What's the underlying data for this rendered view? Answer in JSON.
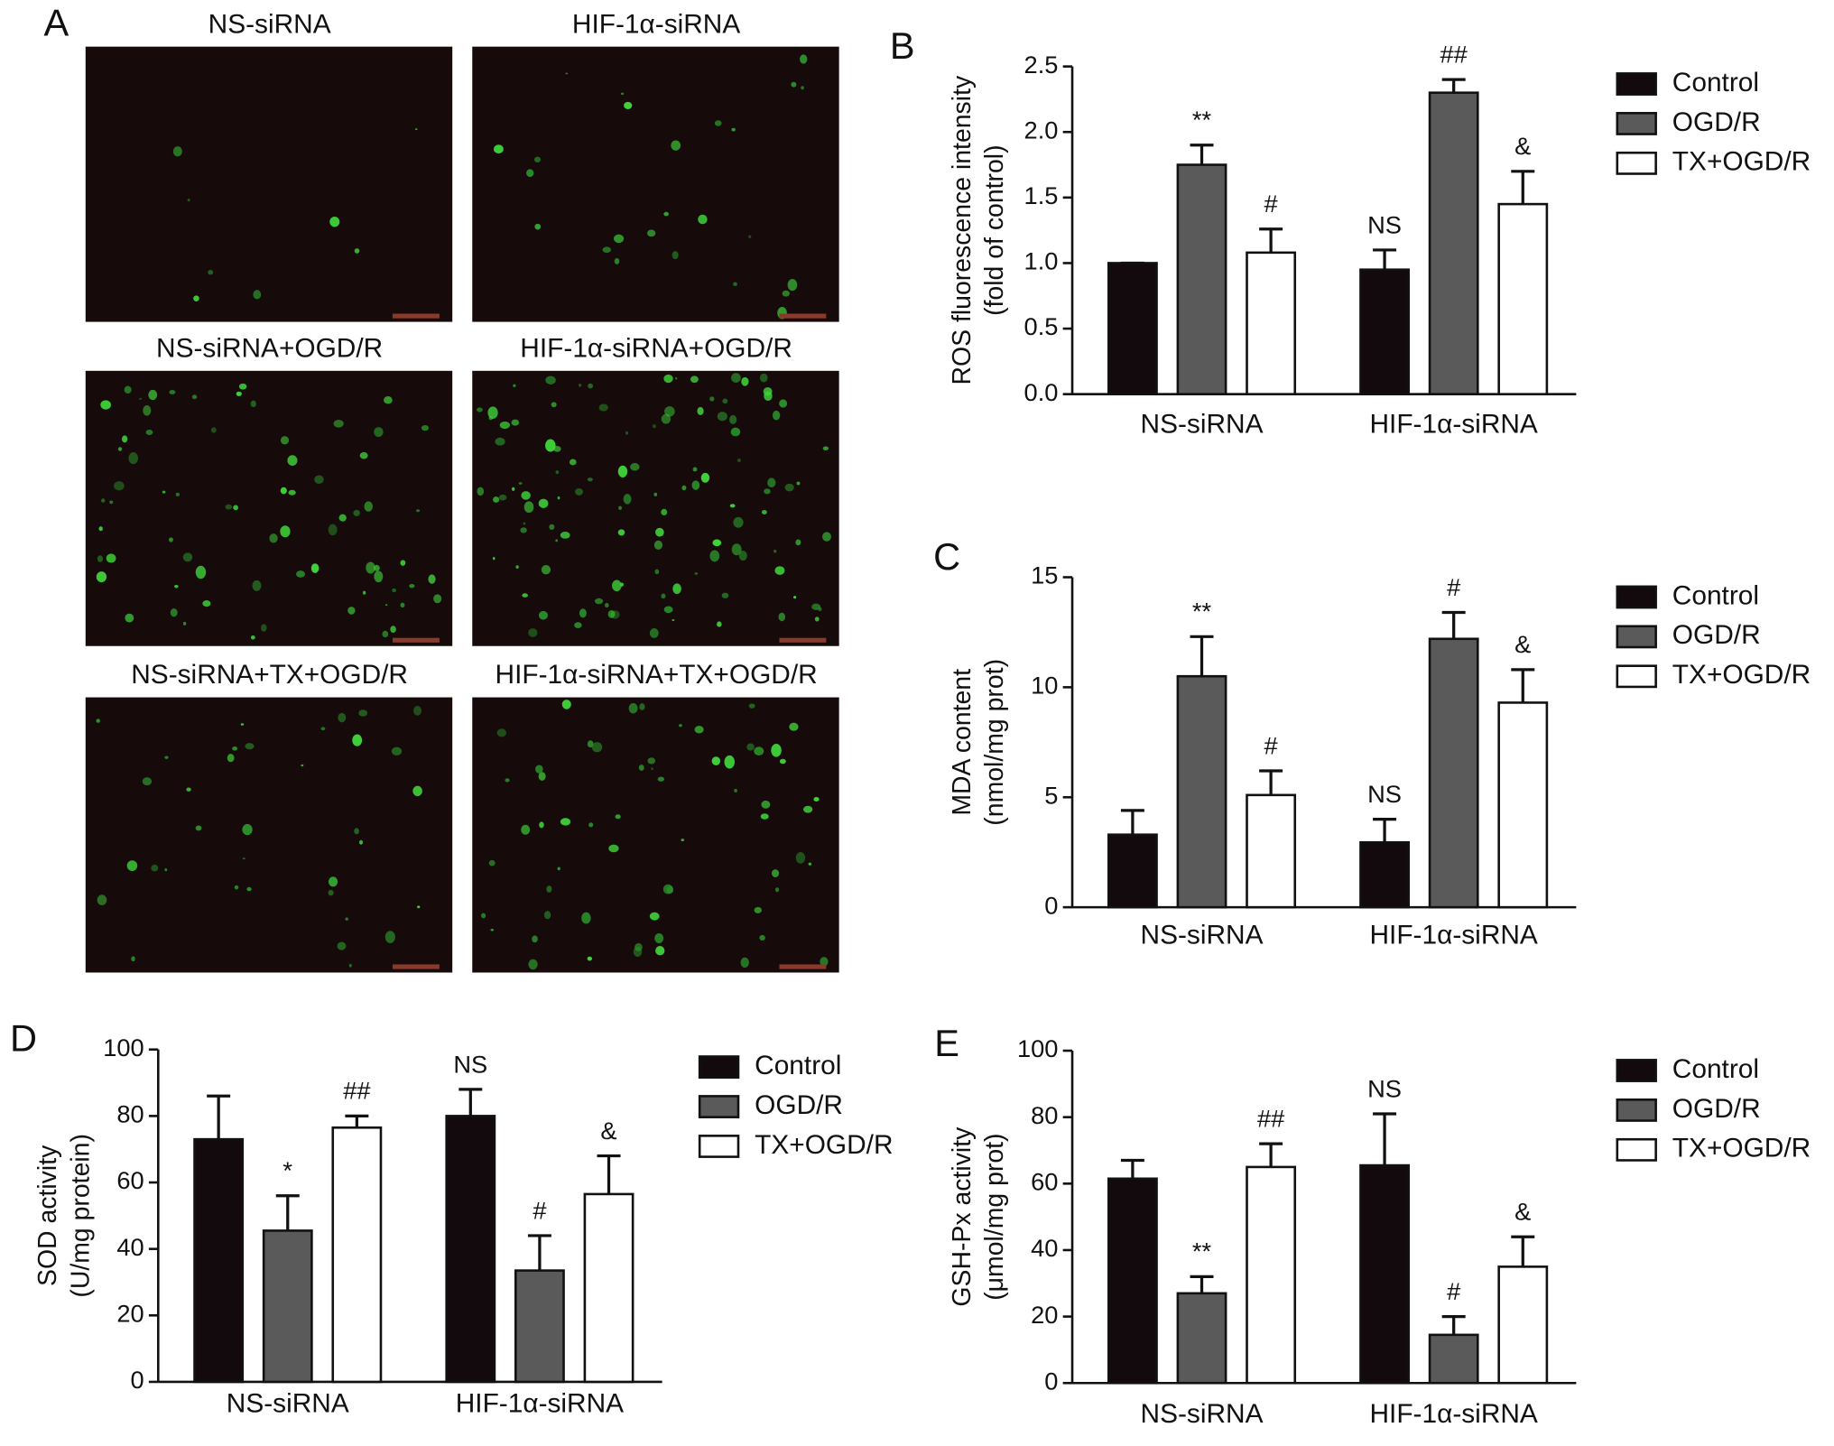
{
  "images": {
    "label": "A",
    "titles": [
      "NS-siRNA",
      "HIF-1α-siRNA",
      "NS-siRNA+OGD/R",
      "HIF-1α-siRNA+OGD/R",
      "NS-siRNA+TX+OGD/R",
      "HIF-1α-siRNA+TX+OGD/R"
    ]
  },
  "chart_data": [
    {
      "type": "bar",
      "panel": "B",
      "ylabel": [
        "ROS fluorescence intensity",
        "(fold of control)"
      ],
      "categories": [
        "NS-siRNA",
        "HIF-1α-siRNA"
      ],
      "ylim": [
        0,
        2.5
      ],
      "yticks": [
        {
          "value": 0,
          "label": "0.0"
        },
        0.5,
        {
          "value": 1,
          "label": "1.0"
        },
        1.5,
        {
          "value": 2,
          "label": "2.0"
        },
        2.5
      ],
      "series": [
        {
          "name": "Control",
          "color": "#120a0c",
          "values": [
            1.0,
            0.95
          ],
          "errors": [
            0,
            0.15
          ],
          "annotations": [
            null,
            "NS"
          ]
        },
        {
          "name": "OGD/R",
          "color": "#5a5a5a",
          "values": [
            1.75,
            2.3
          ],
          "errors": [
            0.15,
            0.1
          ],
          "annotations": [
            "**",
            "##"
          ]
        },
        {
          "name": "TX+OGD/R",
          "color": "#ffffff",
          "values": [
            1.08,
            1.45
          ],
          "errors": [
            0.18,
            0.25
          ],
          "annotations": [
            "#",
            "&"
          ]
        }
      ]
    },
    {
      "type": "bar",
      "panel": "C",
      "ylabel": [
        "MDA content",
        "(nmol/mg prot)"
      ],
      "categories": [
        "NS-siRNA",
        "HIF-1α-siRNA"
      ],
      "ylim": [
        0,
        15
      ],
      "yticks": [
        0,
        5,
        10,
        15
      ],
      "series": [
        {
          "name": "Control",
          "color": "#120a0c",
          "values": [
            3.3,
            2.95
          ],
          "errors": [
            1.1,
            1.05
          ],
          "annotations": [
            null,
            "NS"
          ]
        },
        {
          "name": "OGD/R",
          "color": "#5a5a5a",
          "values": [
            10.5,
            12.2
          ],
          "errors": [
            1.8,
            1.2
          ],
          "annotations": [
            "**",
            "#"
          ]
        },
        {
          "name": "TX+OGD/R",
          "color": "#ffffff",
          "values": [
            5.1,
            9.3
          ],
          "errors": [
            1.1,
            1.5
          ],
          "annotations": [
            "#",
            "&"
          ]
        }
      ]
    },
    {
      "type": "bar",
      "panel": "D",
      "ylabel": [
        "SOD activity",
        "(U/mg protein)"
      ],
      "categories": [
        "NS-siRNA",
        "HIF-1α-siRNA"
      ],
      "ylim": [
        0,
        100
      ],
      "yticks": [
        0,
        20,
        40,
        60,
        80,
        100
      ],
      "series": [
        {
          "name": "Control",
          "color": "#120a0c",
          "values": [
            73,
            80
          ],
          "errors": [
            13,
            8
          ],
          "annotations": [
            null,
            "NS"
          ]
        },
        {
          "name": "OGD/R",
          "color": "#5a5a5a",
          "values": [
            45.5,
            33.5
          ],
          "errors": [
            10.5,
            10.5
          ],
          "annotations": [
            "*",
            "#"
          ]
        },
        {
          "name": "TX+OGD/R",
          "color": "#ffffff",
          "values": [
            76.5,
            56.5
          ],
          "errors": [
            3.5,
            11.5
          ],
          "annotations": [
            "##",
            "&"
          ]
        }
      ]
    },
    {
      "type": "bar",
      "panel": "E",
      "ylabel": [
        "GSH-Px activity",
        "(μmol/mg prot)"
      ],
      "categories": [
        "NS-siRNA",
        "HIF-1α-siRNA"
      ],
      "ylim": [
        0,
        100
      ],
      "yticks": [
        0,
        20,
        40,
        60,
        80,
        100
      ],
      "series": [
        {
          "name": "Control",
          "color": "#120a0c",
          "values": [
            61.5,
            65.5
          ],
          "errors": [
            5.5,
            15.5
          ],
          "annotations": [
            null,
            "NS"
          ]
        },
        {
          "name": "OGD/R",
          "color": "#5a5a5a",
          "values": [
            27,
            14.5
          ],
          "errors": [
            5,
            5.5
          ],
          "annotations": [
            "**",
            "#"
          ]
        },
        {
          "name": "TX+OGD/R",
          "color": "#ffffff",
          "values": [
            65,
            35
          ],
          "errors": [
            7,
            9
          ],
          "annotations": [
            "##",
            "&"
          ]
        }
      ]
    }
  ]
}
